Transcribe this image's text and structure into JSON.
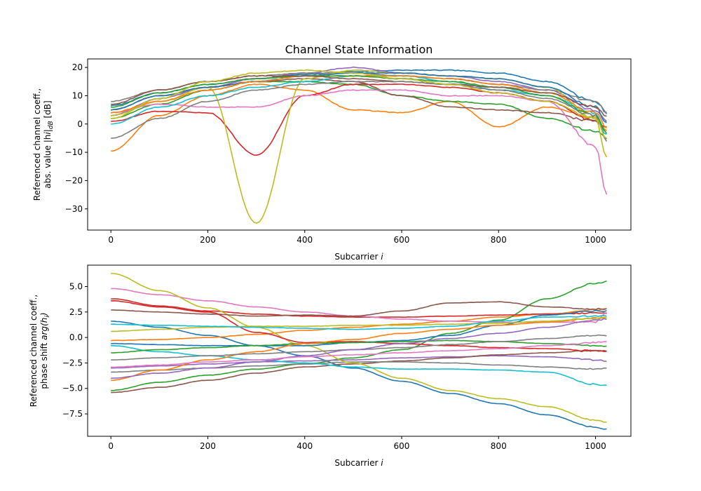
{
  "chart_data": [
    {
      "type": "line",
      "title": "Channel State Information",
      "xlabel_main": "Subcarrier",
      "xlabel_var": "i",
      "ylabel_line1": "Referenced channel coeff.,",
      "ylabel_line2_main": "abs. value |h",
      "ylabel_line2_var": "i",
      "ylabel_line2_sub": "dB",
      "ylabel_line2_unit": "[dB]",
      "xlim": [
        -48,
        1073
      ],
      "ylim": [
        -37.5,
        23
      ],
      "xticks": [
        0,
        200,
        400,
        600,
        800,
        1000
      ],
      "yticks": [
        -30,
        -20,
        -10,
        0,
        10,
        20
      ],
      "x_points": [
        0,
        100,
        200,
        300,
        400,
        500,
        600,
        700,
        800,
        900,
        1000,
        1023
      ],
      "series": [
        {
          "color": "#1f77b4",
          "values": [
            6.5,
            11,
            14,
            16,
            17.5,
            18.5,
            19,
            19,
            18,
            15,
            8,
            4
          ]
        },
        {
          "color": "#ff7f0e",
          "values": [
            -9.5,
            3,
            10,
            14,
            12,
            5,
            4,
            8,
            -1,
            6,
            2,
            -2
          ]
        },
        {
          "color": "#2ca02c",
          "values": [
            2,
            7,
            12,
            15,
            15,
            14,
            10,
            8,
            7,
            2,
            -2.5,
            -5
          ]
        },
        {
          "color": "#d62728",
          "values": [
            1,
            4.5,
            4,
            -11,
            10,
            14,
            14,
            13,
            11,
            8,
            1,
            -1
          ]
        },
        {
          "color": "#9467bd",
          "values": [
            3,
            9,
            13,
            16,
            18,
            20,
            18,
            17,
            15,
            12,
            5,
            1
          ]
        },
        {
          "color": "#8c564b",
          "values": [
            5,
            10,
            13,
            15,
            16,
            15,
            10,
            6,
            5,
            4,
            1,
            -1
          ]
        },
        {
          "color": "#e377c2",
          "values": [
            4,
            7,
            6,
            6,
            10,
            12,
            12,
            10,
            10,
            8,
            -8,
            -25
          ]
        },
        {
          "color": "#7f7f7f",
          "values": [
            8,
            12,
            15,
            17,
            18,
            18,
            17,
            16,
            14,
            12,
            8,
            4
          ]
        },
        {
          "color": "#bcbd22",
          "values": [
            3,
            8,
            13,
            -35,
            16,
            19,
            18,
            17,
            16,
            13,
            2,
            -12
          ]
        },
        {
          "color": "#17becf",
          "values": [
            0,
            6,
            10,
            13,
            15,
            17,
            17,
            15,
            12,
            10,
            4,
            -4
          ]
        },
        {
          "color": "#1f77b4",
          "values": [
            5,
            10,
            13,
            15,
            17,
            18,
            18,
            17,
            16,
            13,
            6,
            0
          ]
        },
        {
          "color": "#ff7f0e",
          "values": [
            4,
            8,
            12,
            15,
            17,
            17,
            17,
            16,
            14,
            11,
            4,
            -1
          ]
        },
        {
          "color": "#2ca02c",
          "values": [
            6,
            11,
            14,
            16,
            17,
            17,
            16,
            15,
            13,
            10,
            3,
            -3
          ]
        },
        {
          "color": "#8c564b",
          "values": [
            7,
            12,
            15,
            17,
            17,
            16,
            15,
            14,
            13,
            11,
            6,
            3
          ]
        },
        {
          "color": "#7f7f7f",
          "values": [
            -5,
            2,
            8,
            12,
            14,
            15,
            15,
            14,
            12,
            9,
            3,
            -6
          ]
        },
        {
          "color": "#bcbd22",
          "values": [
            2,
            9,
            15,
            18,
            19,
            18,
            16,
            14,
            11,
            8,
            2,
            -5
          ]
        }
      ]
    },
    {
      "type": "line",
      "xlabel_main": "Subcarrier",
      "xlabel_var": "i",
      "ylabel_line1": "Referenced channel coeff.,",
      "ylabel_line2_main": "phase shift",
      "ylabel_line2_var": "arg(h",
      "ylabel_line2_sub": "i",
      "ylabel_line2_unit": ")",
      "xlim": [
        -48,
        1073
      ],
      "ylim": [
        -9.7,
        7.1
      ],
      "xticks": [
        0,
        200,
        400,
        600,
        800,
        1000
      ],
      "yticks": [
        -7.5,
        -5.0,
        -2.5,
        0.0,
        2.5,
        5.0
      ],
      "ytick_labels": [
        "−7.5",
        "−5.0",
        "−2.5",
        "0.0",
        "2.5",
        "5.0"
      ],
      "xtick_labels": [
        "0",
        "200",
        "400",
        "600",
        "800",
        "1000"
      ],
      "x_points": [
        0,
        100,
        200,
        300,
        400,
        500,
        600,
        700,
        800,
        900,
        1000,
        1023
      ],
      "series": [
        {
          "color": "#1f77b4",
          "values": [
            1.6,
            1.0,
            0.2,
            -0.8,
            -1.8,
            -3.0,
            -4.3,
            -5.5,
            -6.5,
            -7.6,
            -8.8,
            -9.0
          ]
        },
        {
          "color": "#ff7f0e",
          "values": [
            -0.3,
            -0.2,
            0.0,
            0.3,
            0.7,
            1.0,
            1.3,
            1.6,
            2.0,
            2.3,
            2.7,
            2.8
          ]
        },
        {
          "color": "#2ca02c",
          "values": [
            -5.2,
            -4.4,
            -3.7,
            -3.1,
            -2.6,
            -2.0,
            -1.2,
            0.4,
            1.7,
            3.8,
            5.3,
            5.5
          ]
        },
        {
          "color": "#d62728",
          "values": [
            3.8,
            3.1,
            2.6,
            2.3,
            2.1,
            2.0,
            2.0,
            2.1,
            2.2,
            2.3,
            2.4,
            2.4
          ]
        },
        {
          "color": "#9467bd",
          "values": [
            -3.0,
            -2.8,
            -2.6,
            -2.4,
            -2.3,
            -2.2,
            -2.0,
            -1.9,
            -1.8,
            -1.9,
            -2.2,
            -2.3
          ]
        },
        {
          "color": "#8c564b",
          "values": [
            -5.4,
            -4.9,
            -4.2,
            -3.5,
            -2.9,
            -2.6,
            -2.3,
            -2.0,
            -1.7,
            -1.5,
            -1.3,
            -1.3
          ]
        },
        {
          "color": "#e377c2",
          "values": [
            4.8,
            4.2,
            3.6,
            3.0,
            2.5,
            2.1,
            1.8,
            1.6,
            1.5,
            1.5,
            1.5,
            2.5
          ]
        },
        {
          "color": "#7f7f7f",
          "values": [
            -3.4,
            -3.2,
            -3.0,
            -2.8,
            -2.6,
            -2.4,
            -2.4,
            -2.5,
            -2.7,
            -2.9,
            -3.1,
            -3.0
          ]
        },
        {
          "color": "#bcbd22",
          "values": [
            6.3,
            4.6,
            2.9,
            1.0,
            -0.8,
            -2.5,
            -4.0,
            -5.2,
            -6.0,
            -6.8,
            -8.1,
            -8.3
          ]
        },
        {
          "color": "#17becf",
          "values": [
            -0.8,
            -1.4,
            -1.8,
            -2.2,
            -2.5,
            -2.9,
            -3.1,
            -3.1,
            -3.2,
            -3.4,
            -4.6,
            -4.7
          ]
        },
        {
          "color": "#8c564b",
          "values": [
            2.7,
            2.5,
            2.3,
            2.1,
            2.2,
            2.1,
            2.6,
            3.4,
            3.5,
            3.0,
            2.8,
            2.8
          ]
        },
        {
          "color": "#d62728",
          "values": [
            3.6,
            3.0,
            2.5,
            0.5,
            -0.5,
            -0.4,
            -0.6,
            -0.8,
            -1.0,
            -1.1,
            -1.3,
            -1.4
          ]
        },
        {
          "color": "#1f77b4",
          "values": [
            -0.6,
            -0.7,
            -0.8,
            -0.8,
            -0.8,
            -0.5,
            -0.3,
            0.2,
            1.2,
            2.2,
            2.6,
            2.6
          ]
        },
        {
          "color": "#2ca02c",
          "values": [
            -1.5,
            -1.2,
            -1.0,
            -0.8,
            -0.6,
            -0.5,
            -0.4,
            -0.3,
            -0.4,
            -0.6,
            -0.8,
            -0.9
          ]
        },
        {
          "color": "#ff7f0e",
          "values": [
            -4.2,
            -3.2,
            -2.2,
            -1.4,
            -0.6,
            -0.2,
            0.4,
            0.8,
            1.2,
            1.5,
            1.9,
            2.0
          ]
        },
        {
          "color": "#7f7f7f",
          "values": [
            -2.2,
            -2.0,
            -1.8,
            -1.6,
            -1.4,
            -1.2,
            -1.0,
            -0.7,
            -0.4,
            -0.1,
            0.2,
            0.2
          ]
        },
        {
          "color": "#9467bd",
          "values": [
            -4.0,
            -3.5,
            -3.0,
            -2.4,
            -1.8,
            -1.2,
            -0.6,
            -0.1,
            0.4,
            1.0,
            1.7,
            1.8
          ]
        },
        {
          "color": "#bcbd22",
          "values": [
            0.6,
            0.8,
            1.0,
            1.1,
            1.1,
            1.2,
            1.2,
            1.3,
            1.4,
            1.6,
            1.9,
            2.0
          ]
        },
        {
          "color": "#17becf",
          "values": [
            1.3,
            1.2,
            1.1,
            1.0,
            0.9,
            0.8,
            0.9,
            1.1,
            1.6,
            2.0,
            2.1,
            2.1
          ]
        },
        {
          "color": "#e377c2",
          "values": [
            -2.9,
            -2.7,
            -2.4,
            -2.2,
            -1.9,
            -1.7,
            -1.5,
            -1.3,
            -1.1,
            -0.8,
            -0.5,
            -0.4
          ]
        }
      ]
    }
  ]
}
